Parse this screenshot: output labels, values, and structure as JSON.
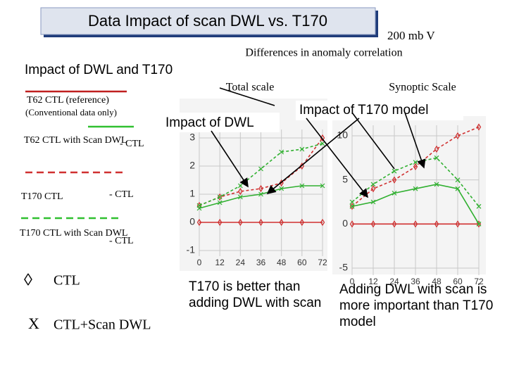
{
  "title": "Data Impact of scan DWL vs. T170",
  "field": "200 mb V",
  "subtitle": "Differences in anomaly correlation",
  "section": "Impact of DWL and T170",
  "legend": {
    "ref": "T62 CTL  (reference)",
    "ref_note": "(Conventional data only)",
    "dwl": "T62 CTL with Scan DWL",
    "dwl_minus": "- CTL",
    "t170": "T170  CTL",
    "t170_minus": "- CTL",
    "t170dwl": "T170 CTL with Scan DWL",
    "t170dwl_minus": "- CTL",
    "diamond_symbol": "◊",
    "diamond_label": "CTL",
    "x_symbol": "X",
    "x_label": "CTL+Scan DWL"
  },
  "labels": {
    "total": "Total scale",
    "synoptic": "Synoptic Scale",
    "impact_dwl": "Impact of DWL",
    "impact_t170": "Impact of T170 model"
  },
  "notes": {
    "left": "T170 is better than adding DWL with scan",
    "right": "Adding DWL with scan is more important than T170 model"
  },
  "charts": [
    {
      "x": [
        0,
        12,
        24,
        36,
        48,
        60,
        72
      ],
      "xlim": [
        0,
        72
      ],
      "xticks": [
        0,
        12,
        24,
        36,
        48,
        60,
        72
      ],
      "ylim": [
        -1.2,
        3.3
      ],
      "yticks": [
        -1,
        0,
        1,
        2,
        3
      ],
      "series": [
        {
          "color": "#d03030",
          "dashed": false,
          "marker": "diamond",
          "values": [
            0,
            0,
            0,
            0,
            0,
            0,
            0
          ]
        },
        {
          "color": "#d03030",
          "dashed": true,
          "marker": "diamond",
          "values": [
            0.6,
            0.9,
            1.1,
            1.2,
            1.4,
            2.0,
            3.0
          ]
        },
        {
          "color": "#30b030",
          "dashed": false,
          "marker": "x",
          "values": [
            0.5,
            0.7,
            0.9,
            1.0,
            1.2,
            1.3,
            1.3
          ]
        },
        {
          "color": "#30b030",
          "dashed": true,
          "marker": "x",
          "values": [
            0.6,
            0.9,
            1.3,
            1.9,
            2.5,
            2.6,
            2.8
          ]
        }
      ]
    },
    {
      "x": [
        0,
        12,
        24,
        36,
        48,
        60,
        72
      ],
      "xlim": [
        0,
        72
      ],
      "xticks": [
        0,
        12,
        24,
        36,
        48,
        60,
        72
      ],
      "ylim": [
        -5.8,
        11.2
      ],
      "yticks": [
        -5,
        0,
        5,
        10
      ],
      "series": [
        {
          "color": "#d03030",
          "dashed": false,
          "marker": "diamond",
          "values": [
            0,
            0,
            0,
            0,
            0,
            0,
            0
          ]
        },
        {
          "color": "#d03030",
          "dashed": true,
          "marker": "diamond",
          "values": [
            2,
            4,
            5,
            6.5,
            8.5,
            10,
            11
          ]
        },
        {
          "color": "#30b030",
          "dashed": false,
          "marker": "x",
          "values": [
            2,
            2.5,
            3.5,
            4,
            4.5,
            4,
            0
          ]
        },
        {
          "color": "#30b030",
          "dashed": true,
          "marker": "x",
          "values": [
            2.5,
            4.5,
            6,
            7,
            7.5,
            5,
            2
          ]
        }
      ]
    }
  ]
}
